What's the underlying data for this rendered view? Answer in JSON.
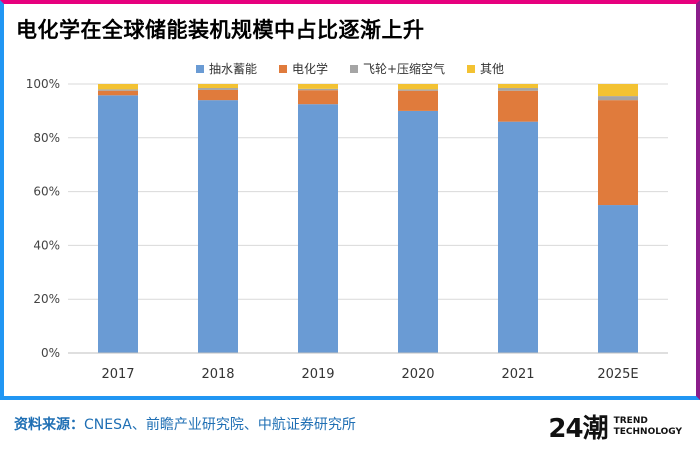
{
  "title": "电化学在全球储能装机规模中占比逐渐上升",
  "colors": {
    "pumped_hydro": "#6a9bd4",
    "electrochemical": "#e07b3c",
    "flywheel_compressed_air": "#a5a5a5",
    "other": "#f3c232"
  },
  "chart_data": {
    "type": "bar",
    "stacked": true,
    "categories": [
      "2017",
      "2018",
      "2019",
      "2020",
      "2021",
      "2025E"
    ],
    "series": [
      {
        "name": "抽水蓄能",
        "values": [
          95.8,
          94.0,
          92.5,
          90.0,
          86.0,
          55.0
        ]
      },
      {
        "name": "电化学",
        "values": [
          1.7,
          3.8,
          5.2,
          7.5,
          11.5,
          39.0
        ]
      },
      {
        "name": "飞轮+压缩空气",
        "values": [
          0.5,
          0.7,
          0.5,
          0.5,
          1.0,
          1.5
        ]
      },
      {
        "name": "其他",
        "values": [
          2.0,
          1.5,
          1.8,
          2.0,
          1.5,
          4.5
        ]
      }
    ],
    "yticks": [
      "0%",
      "20%",
      "40%",
      "60%",
      "80%",
      "100%"
    ],
    "ylim": [
      0,
      100
    ]
  },
  "footer": {
    "source_label": "资料来源：",
    "source_text": "CNESA、前瞻产业研究院、中航证券研究所"
  },
  "logo": {
    "mark": "24潮",
    "line1": "TREND",
    "line2": "TECHNOLOGY"
  }
}
